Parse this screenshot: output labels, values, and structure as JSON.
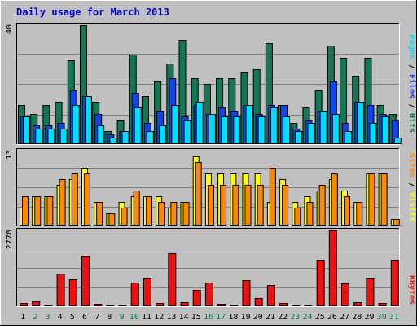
{
  "title": "Daily usage for March 2013",
  "colors": {
    "background": "#C0C0C0",
    "title": "#0000CC",
    "pages": "#00DDFF",
    "files": "#1144EE",
    "hits": "#117755",
    "sites": "#FF8800",
    "visits": "#FFFF00",
    "kbytes": "#EE1111",
    "weekday_label": "#000000",
    "weekend_label": "#008040"
  },
  "legend": {
    "top": [
      "Pages",
      "Files",
      "Hits"
    ],
    "middle": [
      "Sites",
      "Visits"
    ],
    "bottom": [
      "KBytes"
    ]
  },
  "chart_data": [
    {
      "type": "bar",
      "panel": "hits-files-pages",
      "ymax_label": "40",
      "ylim": [
        0,
        40
      ],
      "categories": [
        "1",
        "2",
        "3",
        "4",
        "5",
        "6",
        "7",
        "8",
        "9",
        "10",
        "11",
        "12",
        "13",
        "14",
        "15",
        "16",
        "17",
        "18",
        "19",
        "20",
        "21",
        "22",
        "23",
        "24",
        "25",
        "26",
        "27",
        "28",
        "29",
        "30",
        "31"
      ],
      "weekend_days": [
        2,
        3,
        9,
        10,
        16,
        17,
        23,
        24,
        30,
        31
      ],
      "series": [
        {
          "name": "Hits",
          "values": [
            13,
            10,
            13,
            14,
            28,
            40,
            14,
            4,
            8,
            30,
            16,
            21,
            27,
            35,
            22,
            20,
            22,
            22,
            24,
            25,
            34,
            13,
            7,
            12,
            18,
            33,
            29,
            23,
            29,
            13,
            10
          ]
        },
        {
          "name": "Files",
          "values": [
            9,
            6,
            6,
            7,
            18,
            16,
            10,
            3,
            4,
            17,
            7,
            11,
            22,
            9,
            13,
            10,
            12,
            11,
            13,
            10,
            13,
            13,
            5,
            8,
            11,
            21,
            7,
            14,
            13,
            10,
            8
          ]
        },
        {
          "name": "Pages",
          "values": [
            9,
            5,
            5,
            5,
            13,
            16,
            6,
            2,
            4,
            12,
            4,
            6,
            13,
            8,
            14,
            10,
            9,
            9,
            13,
            9,
            12,
            9,
            4,
            7,
            11,
            10,
            4,
            14,
            7,
            9,
            2
          ]
        }
      ]
    },
    {
      "type": "bar",
      "panel": "visits-sites",
      "ymax_label": "13",
      "ylim": [
        0,
        13
      ],
      "categories": [
        "1",
        "2",
        "3",
        "4",
        "5",
        "6",
        "7",
        "8",
        "9",
        "10",
        "11",
        "12",
        "13",
        "14",
        "15",
        "16",
        "17",
        "18",
        "19",
        "20",
        "21",
        "22",
        "23",
        "24",
        "25",
        "26",
        "27",
        "28",
        "29",
        "30",
        "31"
      ],
      "series": [
        {
          "name": "Visits",
          "values": [
            3,
            5,
            5,
            7,
            8,
            10,
            4,
            2,
            4,
            5,
            5,
            5,
            3,
            4,
            12,
            9,
            9,
            9,
            9,
            9,
            4,
            8,
            4,
            5,
            6,
            8,
            6,
            4,
            9,
            9,
            1
          ]
        },
        {
          "name": "Sites",
          "values": [
            5,
            5,
            5,
            8,
            9,
            9,
            4,
            2,
            3,
            6,
            5,
            4,
            4,
            4,
            11,
            7,
            7,
            7,
            7,
            7,
            10,
            7,
            3,
            4,
            7,
            9,
            5,
            4,
            9,
            9,
            1
          ]
        }
      ]
    },
    {
      "type": "bar",
      "panel": "kbytes",
      "ymax_label": "2778",
      "ylim": [
        0,
        2778
      ],
      "categories": [
        "1",
        "2",
        "3",
        "4",
        "5",
        "6",
        "7",
        "8",
        "9",
        "10",
        "11",
        "12",
        "13",
        "14",
        "15",
        "16",
        "17",
        "18",
        "19",
        "20",
        "21",
        "22",
        "23",
        "24",
        "25",
        "26",
        "27",
        "28",
        "29",
        "30",
        "31"
      ],
      "series": [
        {
          "name": "KBytes",
          "values": [
            100,
            140,
            40,
            1180,
            980,
            1840,
            60,
            40,
            40,
            860,
            1020,
            100,
            1920,
            120,
            580,
            860,
            50,
            40,
            940,
            260,
            760,
            100,
            40,
            40,
            1700,
            2778,
            830,
            120,
            1040,
            80,
            1680
          ]
        }
      ]
    }
  ]
}
